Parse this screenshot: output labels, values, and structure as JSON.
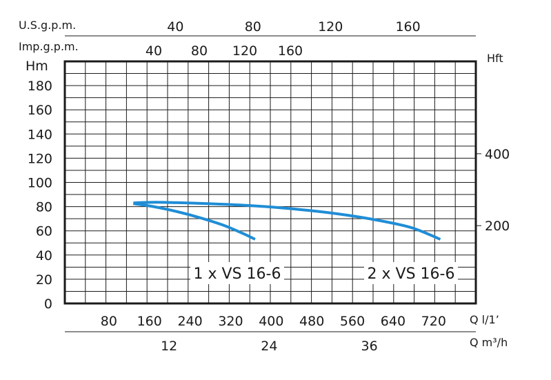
{
  "chart_data": {
    "type": "line",
    "axes": {
      "head_m": {
        "label": "Hm",
        "ticks": [
          0,
          20,
          40,
          60,
          80,
          100,
          120,
          140,
          160,
          180
        ],
        "range": [
          0,
          200
        ]
      },
      "head_ft": {
        "label": "Hft",
        "ticks": [
          200,
          400
        ]
      },
      "flow_lpm": {
        "label": "Q l/1’",
        "ticks": [
          80,
          160,
          240,
          320,
          400,
          480,
          560,
          640,
          720
        ],
        "range": [
          0,
          810
        ]
      },
      "flow_m3h": {
        "label": "Q m³/h",
        "ticks": [
          12,
          24,
          36
        ]
      },
      "flow_usgpm": {
        "label": "U.S.g.p.m.",
        "ticks": [
          40,
          80,
          120,
          160
        ]
      },
      "flow_impgpm": {
        "label": "Imp.g.p.m.",
        "ticks": [
          40,
          80,
          120,
          160
        ]
      }
    },
    "grid": true,
    "series": [
      {
        "name": "1 x VS 16-6",
        "x": [
          135,
          175,
          220,
          265,
          310,
          350,
          375
        ],
        "y": [
          82.5,
          80,
          76,
          71,
          65,
          58,
          53
        ]
      },
      {
        "name": "2 x VS 16-6",
        "x": [
          135,
          160,
          200,
          280,
          360,
          440,
          520,
          600,
          680,
          740
        ],
        "y": [
          83,
          83.5,
          83.5,
          82.5,
          81,
          78.5,
          75,
          70,
          63,
          53
        ]
      }
    ],
    "colors": {
      "curve": "#1f8dd6",
      "grid": "#1a1a1a",
      "frame": "#1a1a1a"
    }
  }
}
